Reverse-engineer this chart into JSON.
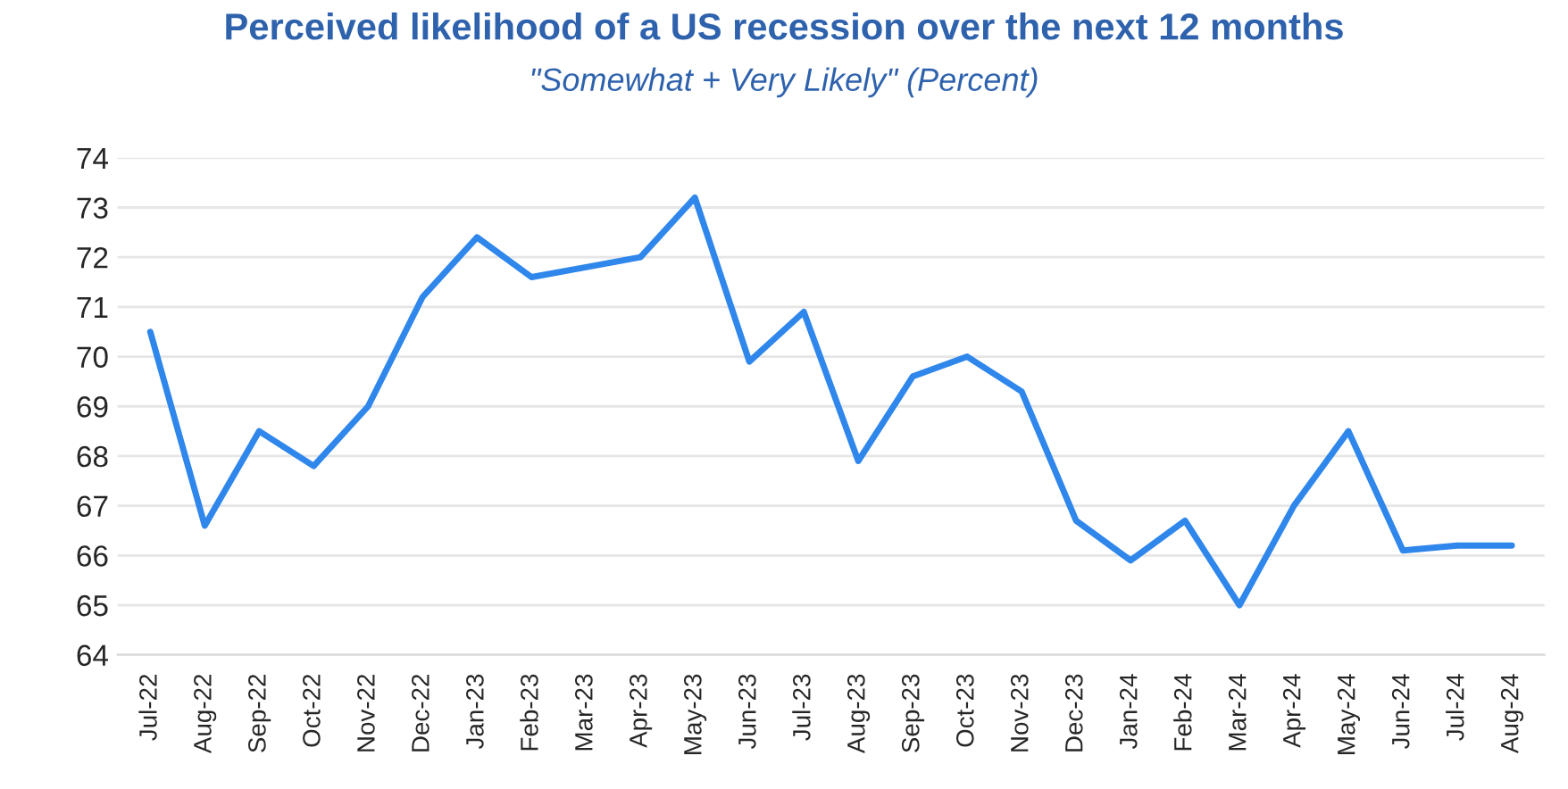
{
  "chart_data": {
    "type": "line",
    "title": "Perceived likelihood of a US recession over the next 12 months",
    "subtitle": "\"Somewhat + Very Likely\" (Percent)",
    "categories": [
      "Jul-22",
      "Aug-22",
      "Sep-22",
      "Oct-22",
      "Nov-22",
      "Dec-22",
      "Jan-23",
      "Feb-23",
      "Mar-23",
      "Apr-23",
      "May-23",
      "Jun-23",
      "Jul-23",
      "Aug-23",
      "Sep-23",
      "Oct-23",
      "Nov-23",
      "Dec-23",
      "Jan-24",
      "Feb-24",
      "Mar-24",
      "Apr-24",
      "May-24",
      "Jun-24",
      "Jul-24",
      "Aug-24"
    ],
    "series": [
      {
        "color": "#2f86eb",
        "values": [
          70.5,
          66.6,
          68.5,
          67.8,
          69.0,
          71.2,
          72.4,
          71.6,
          71.8,
          72.0,
          73.2,
          69.9,
          70.9,
          67.9,
          69.6,
          70.0,
          69.3,
          66.7,
          65.9,
          66.7,
          65.0,
          67.0,
          68.5,
          66.1,
          66.2,
          66.2
        ]
      }
    ],
    "ylim": [
      64,
      74
    ],
    "yticks": [
      64,
      65,
      66,
      67,
      68,
      69,
      70,
      71,
      72,
      73,
      74
    ],
    "grid": "y",
    "marker": "none",
    "line_style": "solid"
  }
}
